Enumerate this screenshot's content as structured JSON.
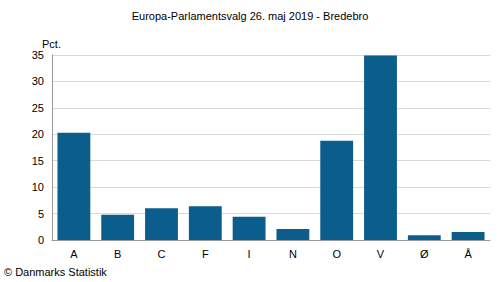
{
  "chart_data": {
    "type": "bar",
    "title": "Europa-Parlamentsvalg 26. maj 2019 - Bredebro",
    "y_label": "Pct.",
    "footer": "© Danmarks Statistik",
    "categories": [
      "A",
      "B",
      "C",
      "F",
      "I",
      "N",
      "O",
      "V",
      "Ø",
      "Å"
    ],
    "values": [
      20.3,
      4.8,
      6.0,
      6.4,
      4.4,
      2.1,
      18.8,
      34.9,
      0.9,
      1.5
    ],
    "color": "#0b5d8c",
    "ylim": [
      0,
      35
    ],
    "yticks": [
      0,
      5,
      10,
      15,
      20,
      25,
      30,
      35
    ],
    "grid": true
  }
}
